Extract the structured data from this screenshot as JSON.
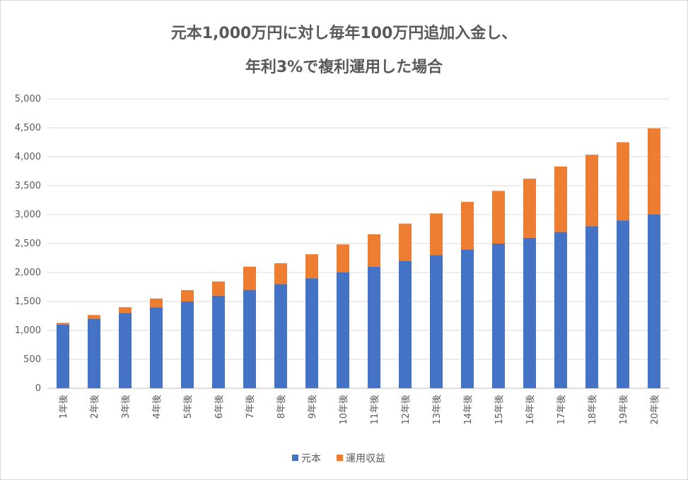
{
  "chart_data": {
    "type": "bar",
    "stacked": true,
    "title": "元本1,000万円に対し毎年100万円追加入金し、",
    "subtitle": "年利3%で複利運用した場合",
    "xlabel": "",
    "ylabel": "",
    "ylim": [
      0,
      5000
    ],
    "yticks": [
      "0",
      "500",
      "1,000",
      "1,500",
      "2,000",
      "2,500",
      "3,000",
      "3,500",
      "4,000",
      "4,500",
      "5,000"
    ],
    "ytick_values": [
      0,
      500,
      1000,
      1500,
      2000,
      2500,
      3000,
      3500,
      4000,
      4500,
      5000
    ],
    "grid": true,
    "legend_position": "bottom",
    "categories": [
      "1年後",
      "2年後",
      "3年後",
      "4年後",
      "5年後",
      "6年後",
      "7年後",
      "8年後",
      "9年後",
      "10年後",
      "11年後",
      "12年後",
      "13年後",
      "14年後",
      "15年後",
      "16年後",
      "17年後",
      "18年後",
      "19年後",
      "20年後"
    ],
    "series": [
      {
        "name": "元本",
        "color": "#4472c4",
        "values": [
          1100,
          1200,
          1300,
          1400,
          1500,
          1600,
          1700,
          1800,
          1900,
          2000,
          2100,
          2200,
          2300,
          2400,
          2500,
          2600,
          2700,
          2800,
          2900,
          3000
        ]
      },
      {
        "name": "運用収益",
        "color": "#ed7d31",
        "values": [
          30,
          65,
          100,
          150,
          195,
          245,
          400,
          360,
          415,
          485,
          560,
          645,
          720,
          820,
          910,
          1020,
          1130,
          1235,
          1350,
          1490
        ]
      }
    ]
  }
}
